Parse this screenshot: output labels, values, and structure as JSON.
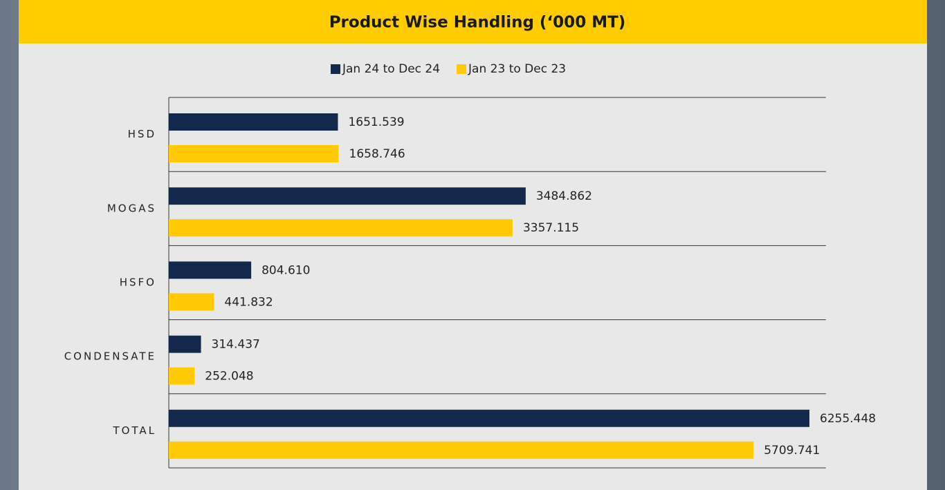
{
  "chart_data": {
    "type": "hbar",
    "title": "Product Wise Handling (‘000 MT)",
    "categories": [
      "HSD",
      "MOGAS",
      "HSFO",
      "CONDENSATE",
      "TOTAL"
    ],
    "series": [
      {
        "name": "Jan 24 to Dec 24",
        "color": "#14284b",
        "values": [
          1651.539,
          3484.862,
          804.61,
          314.437,
          6255.448
        ],
        "value_labels": [
          "1651.539",
          "3484.862",
          "804.610",
          "314.437",
          "6255.448"
        ]
      },
      {
        "name": "Jan 23 to Dec 23",
        "color": "#ffc906",
        "values": [
          1658.746,
          3357.115,
          441.832,
          252.048,
          5709.741
        ],
        "value_labels": [
          "1658.746",
          "3357.115",
          "441.832",
          "252.048",
          "5709.741"
        ]
      }
    ],
    "legend": "top"
  }
}
